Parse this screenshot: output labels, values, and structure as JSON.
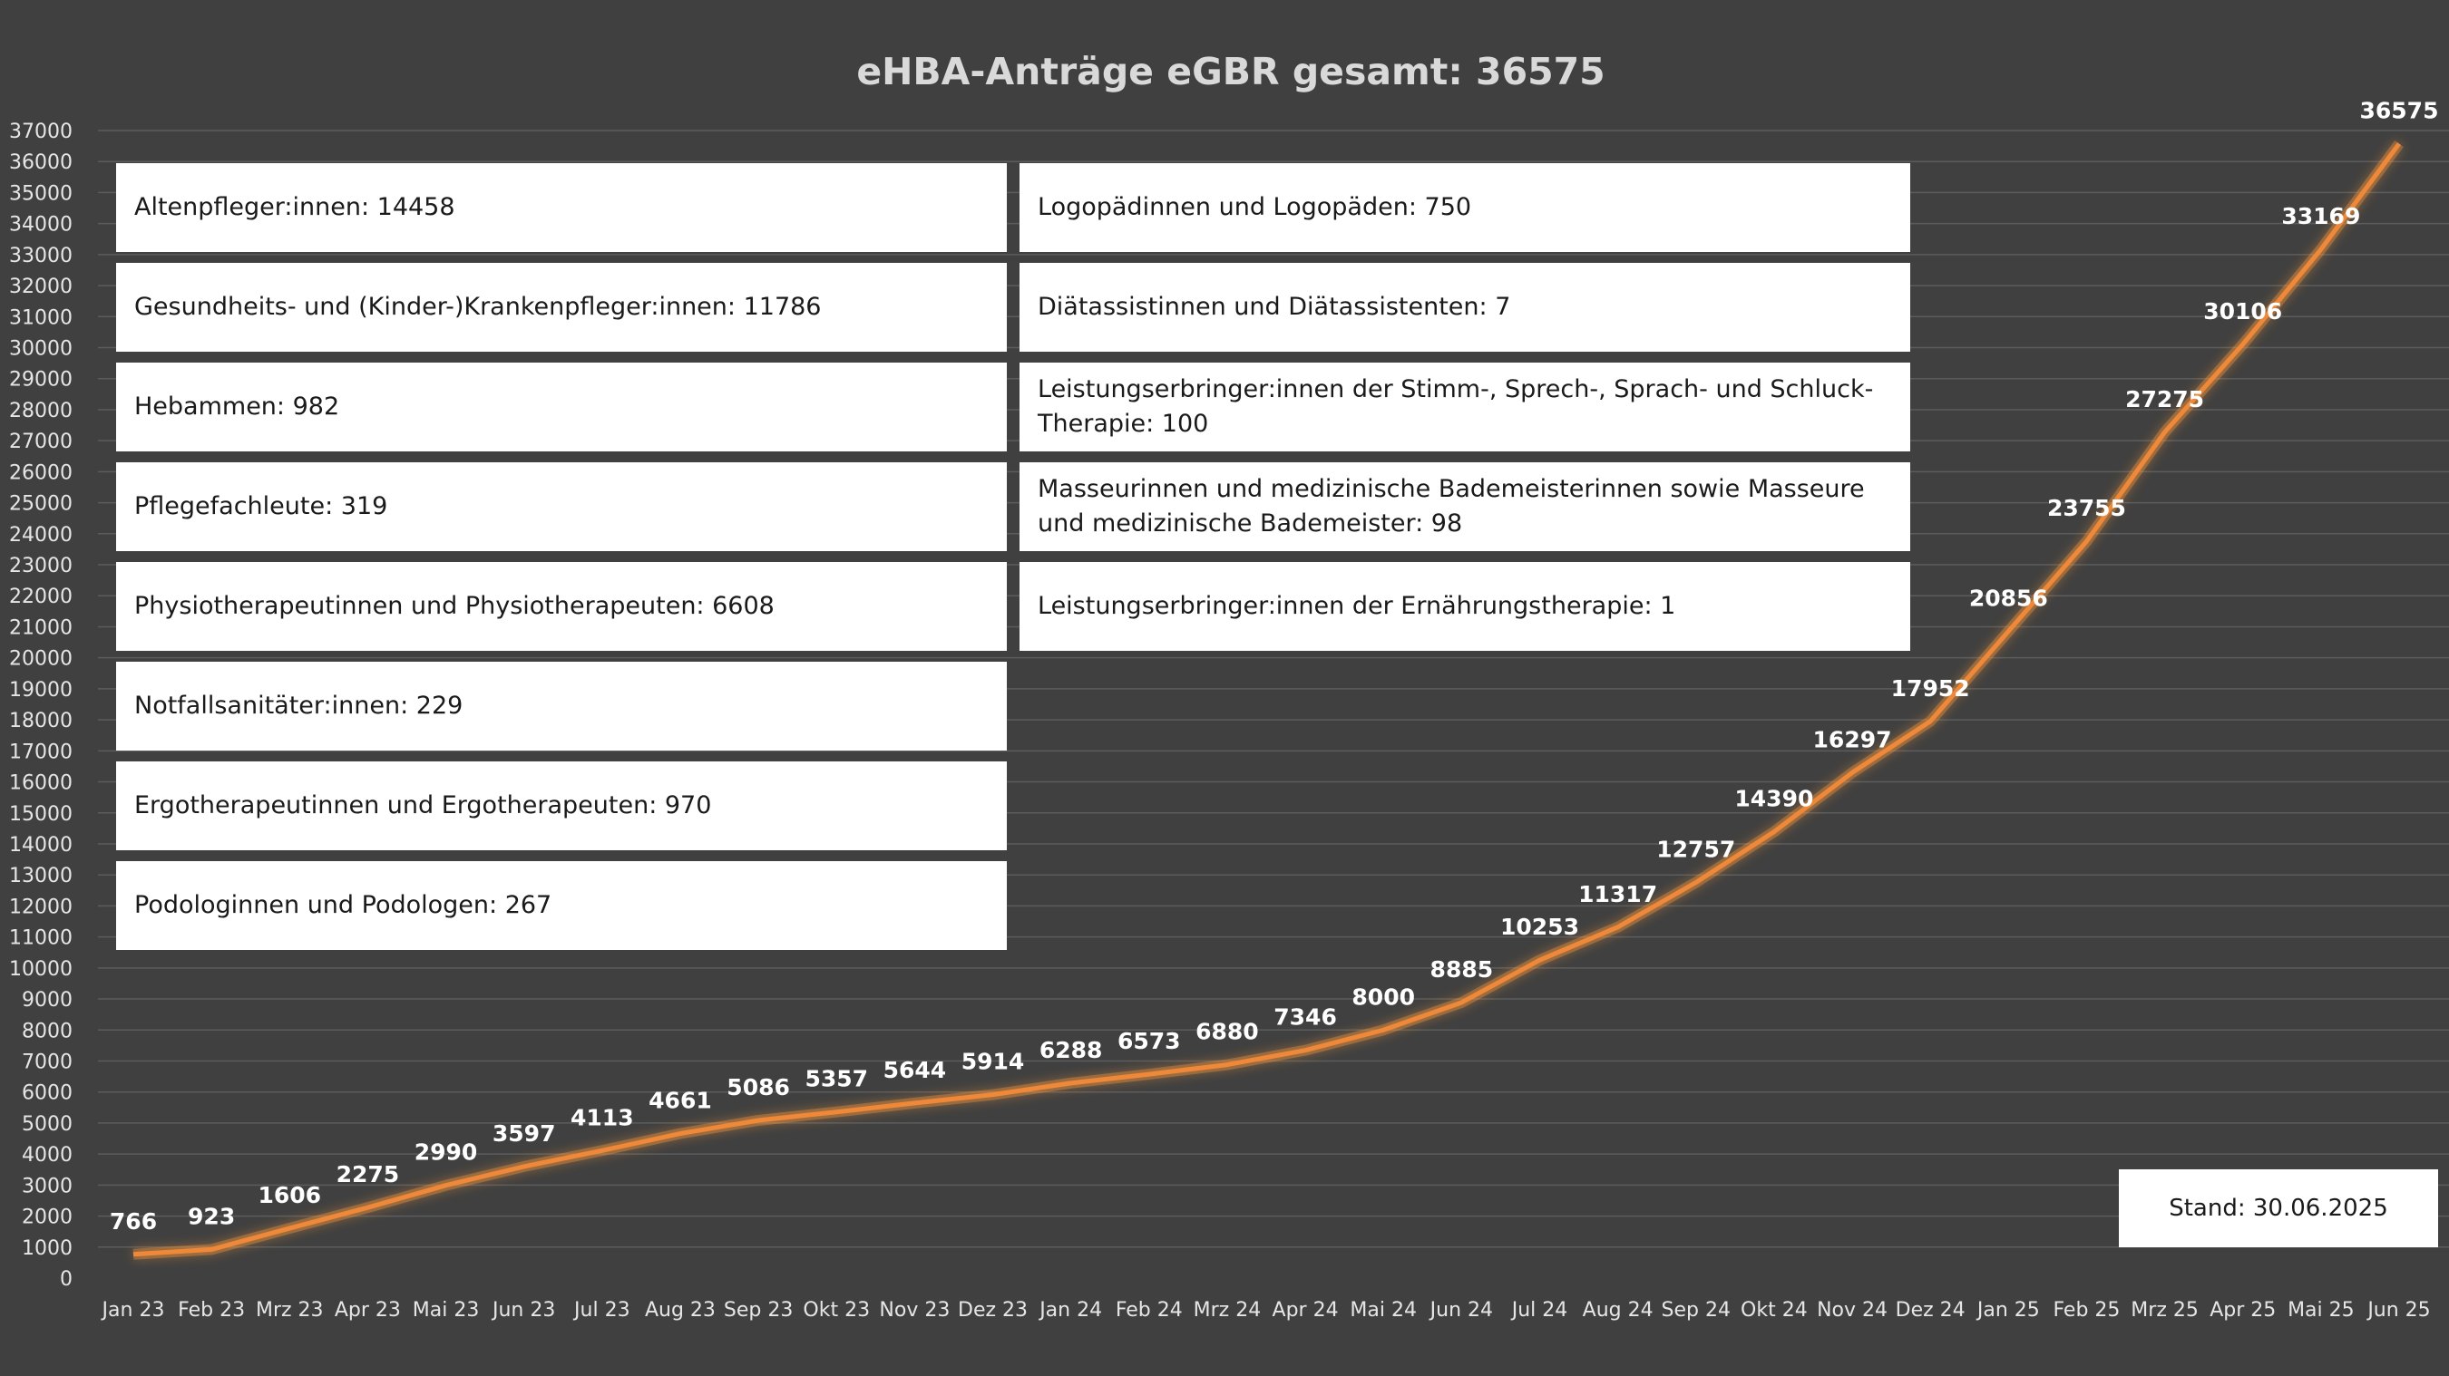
{
  "colors": {
    "background": "#404040",
    "line": "#f0883a",
    "line_glow": "#ff9a3c",
    "grid": "#5c5c5c",
    "axis_text": "#e6e6e6",
    "label_text": "#ffffff",
    "title_text": "#d9d9d9"
  },
  "chart_data": {
    "type": "line",
    "title": "eHBA-Anträge eGBR gesamt: 36575",
    "xlabel": "",
    "ylabel": "",
    "ylim": [
      0,
      37000
    ],
    "ytick_step": 1000,
    "grid": true,
    "categories": [
      "Jan 23",
      "Feb 23",
      "Mrz 23",
      "Apr 23",
      "Mai 23",
      "Jun 23",
      "Jul 23",
      "Aug 23",
      "Sep 23",
      "Okt 23",
      "Nov 23",
      "Dez 23",
      "Jan 24",
      "Feb 24",
      "Mrz 24",
      "Apr 24",
      "Mai 24",
      "Jun 24",
      "Jul 24",
      "Aug 24",
      "Sep 24",
      "Okt 24",
      "Nov 24",
      "Dez 24",
      "Jan 25",
      "Feb 25",
      "Mrz 25",
      "Apr 25",
      "Mai 25",
      "Jun 25"
    ],
    "values": [
      766,
      923,
      1606,
      2275,
      2990,
      3597,
      4113,
      4661,
      5086,
      5357,
      5644,
      5914,
      6288,
      6573,
      6880,
      7346,
      8000,
      8885,
      10253,
      11317,
      12757,
      14390,
      16297,
      17952,
      20856,
      23755,
      27275,
      30106,
      33169,
      36575
    ],
    "annotations_left": [
      "Altenpfleger:innen: 14458",
      "Gesundheits- und (Kinder-)Krankenpfleger:innen: 11786",
      "Hebammen: 982",
      "Pflegefachleute: 319",
      "Physiotherapeutinnen und Physiotherapeuten: 6608",
      "Notfallsanitäter:innen: 229",
      "Ergotherapeutinnen und Ergotherapeuten: 970",
      "Podologinnen und Podologen: 267"
    ],
    "annotations_right": [
      "Logopädinnen und Logopäden: 750",
      "Diätassistinnen und Diätassistenten: 7",
      "Leistungserbringer:innen der Stimm-, Sprech-, Sprach- und Schluck-Therapie: 100",
      "Masseurinnen und medizinische Bademeisterinnen sowie Masseure und medizinische Bademeister: 98",
      "Leistungserbringer:innen der Ernährungstherapie: 1"
    ],
    "stand": "Stand: 30.06.2025"
  }
}
